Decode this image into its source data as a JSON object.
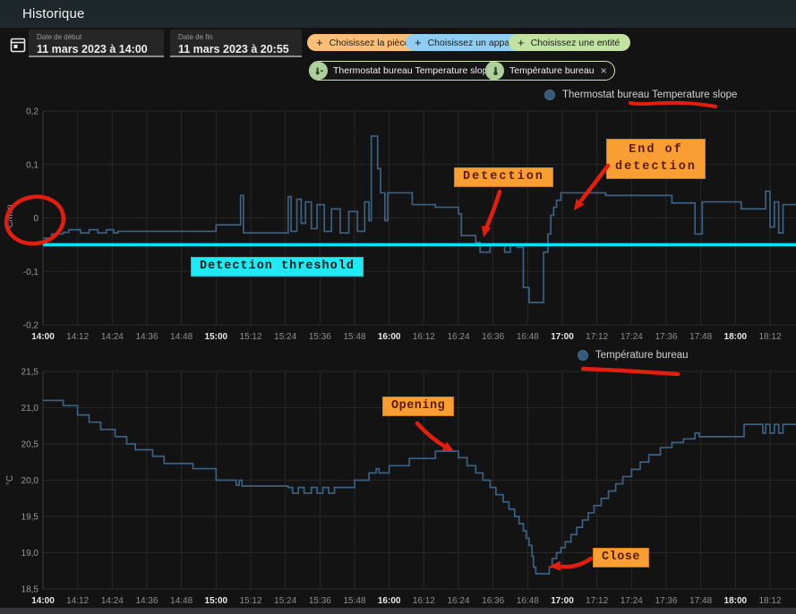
{
  "header": {
    "title": "Historique"
  },
  "toolbar": {
    "start_date": {
      "label": "Date de début",
      "value": "11 mars 2023 à 14:00"
    },
    "end_date": {
      "label": "Date de fin",
      "value": "11 mars 2023 à 20:55"
    },
    "filter_buttons": [
      {
        "label": "Choisissez la pièce",
        "color": "#fbbf77"
      },
      {
        "label": "Choisissez un appareil",
        "color": "#8fcdf2"
      },
      {
        "label": "Choisissez une entité",
        "color": "#c2e2a2"
      }
    ],
    "entity_chips": [
      {
        "label": "Thermostat bureau Temperature slope",
        "icon": "thermometer-chevron-icon"
      },
      {
        "label": "Température bureau",
        "icon": "thermometer-icon"
      }
    ]
  },
  "icons": {
    "plus": "+",
    "close": "×"
  },
  "annotations": {
    "detection": "Detection",
    "end_of_detection_l1": "End of",
    "end_of_detection_l2": "detection",
    "threshold": "Detection threshold",
    "opening": "Opening",
    "close": "Close"
  },
  "colors": {
    "series_blue": "#3b6183",
    "threshold_cyan": "#00e6f0",
    "annotation_orange": "#f89e33",
    "annotation_cyan": "#21e9f3",
    "marker_red": "#e41e0f"
  },
  "chart_data": [
    {
      "type": "line",
      "title": "Thermostat bureau Temperature slope",
      "ylabel": "°C/min",
      "ylim": [
        -0.2,
        0.2
      ],
      "x_range_minutes": [
        0,
        261
      ],
      "grid": true,
      "legend_position": "top-right",
      "y_ticks": [
        {
          "v": 0.2,
          "label": "0,2"
        },
        {
          "v": 0.1,
          "label": "0,1"
        },
        {
          "v": 0,
          "label": "0"
        },
        {
          "v": -0.1,
          "label": "-0,1"
        },
        {
          "v": -0.2,
          "label": "-0,2"
        }
      ],
      "x_ticks": [
        {
          "t": 0,
          "label": "14:00",
          "bold": true
        },
        {
          "t": 12,
          "label": "14:12"
        },
        {
          "t": 24,
          "label": "14:24"
        },
        {
          "t": 36,
          "label": "14:36"
        },
        {
          "t": 48,
          "label": "14:48"
        },
        {
          "t": 60,
          "label": "15:00",
          "bold": true
        },
        {
          "t": 72,
          "label": "15:12"
        },
        {
          "t": 84,
          "label": "15:24"
        },
        {
          "t": 96,
          "label": "15:36"
        },
        {
          "t": 108,
          "label": "15:48"
        },
        {
          "t": 120,
          "label": "16:00",
          "bold": true
        },
        {
          "t": 132,
          "label": "16:12"
        },
        {
          "t": 144,
          "label": "16:24"
        },
        {
          "t": 156,
          "label": "16:36"
        },
        {
          "t": 168,
          "label": "16:48"
        },
        {
          "t": 180,
          "label": "17:00",
          "bold": true
        },
        {
          "t": 192,
          "label": "17:12"
        },
        {
          "t": 204,
          "label": "17:24"
        },
        {
          "t": 216,
          "label": "17:36"
        },
        {
          "t": 228,
          "label": "17:48"
        },
        {
          "t": 240,
          "label": "18:00",
          "bold": true
        },
        {
          "t": 252,
          "label": "18:12"
        }
      ],
      "threshold": {
        "value": -0.05,
        "color": "#00e6f0",
        "label": "Detection threshold"
      },
      "series": [
        {
          "name": "Thermostat bureau Temperature slope",
          "color": "#3b6183",
          "step": true,
          "points": [
            [
              0,
              -0.038
            ],
            [
              3,
              -0.03
            ],
            [
              7,
              -0.027
            ],
            [
              9,
              -0.022
            ],
            [
              13,
              -0.028
            ],
            [
              16,
              -0.022
            ],
            [
              19,
              -0.028
            ],
            [
              22,
              -0.022
            ],
            [
              24.5,
              -0.028
            ],
            [
              26,
              -0.025
            ],
            [
              60,
              -0.013
            ],
            [
              68.5,
              0.042
            ],
            [
              69.5,
              -0.028
            ],
            [
              85,
              0.04
            ],
            [
              86,
              -0.025
            ],
            [
              88,
              0.035
            ],
            [
              89.5,
              -0.01
            ],
            [
              91,
              0.03
            ],
            [
              93,
              -0.02
            ],
            [
              95,
              0.025
            ],
            [
              97.5,
              -0.025
            ],
            [
              100,
              0.017
            ],
            [
              103,
              -0.028
            ],
            [
              106,
              0.012
            ],
            [
              109,
              -0.025
            ],
            [
              111.5,
              0.03
            ],
            [
              113,
              -0.005
            ],
            [
              113.8,
              0.153
            ],
            [
              116,
              0.092
            ],
            [
              117,
              0.047
            ],
            [
              118.5,
              -0.005
            ],
            [
              119.5,
              0.047
            ],
            [
              127,
              0.047
            ],
            [
              128,
              0.025
            ],
            [
              136,
              0.02
            ],
            [
              144,
              0.008
            ],
            [
              145,
              -0.033
            ],
            [
              150,
              -0.046
            ],
            [
              151.5,
              -0.064
            ],
            [
              155,
              -0.049
            ],
            [
              160,
              -0.064
            ],
            [
              162,
              -0.049
            ],
            [
              164.5,
              -0.055
            ],
            [
              166.5,
              -0.13
            ],
            [
              168.5,
              -0.158
            ],
            [
              173.5,
              -0.064
            ],
            [
              175,
              -0.03
            ],
            [
              176,
              0.005
            ],
            [
              177,
              0.02
            ],
            [
              178,
              0.033
            ],
            [
              179.5,
              0.047
            ],
            [
              195,
              0.042
            ],
            [
              218,
              0.028
            ],
            [
              226,
              -0.03
            ],
            [
              228.5,
              0.03
            ],
            [
              242,
              0.017
            ],
            [
              250.5,
              0.05
            ],
            [
              252,
              -0.017
            ],
            [
              253.5,
              0.03
            ],
            [
              255,
              -0.028
            ],
            [
              256.5,
              0.025
            ]
          ]
        }
      ]
    },
    {
      "type": "line",
      "title": "Température bureau",
      "ylabel": "°C",
      "ylim": [
        18.5,
        21.5
      ],
      "x_range_minutes": [
        0,
        261
      ],
      "grid": true,
      "legend_position": "top-right",
      "y_ticks": [
        {
          "v": 21.5,
          "label": "21,5"
        },
        {
          "v": 21.0,
          "label": "21,0"
        },
        {
          "v": 20.5,
          "label": "20,5"
        },
        {
          "v": 20.0,
          "label": "20,0"
        },
        {
          "v": 19.5,
          "label": "19,5"
        },
        {
          "v": 19.0,
          "label": "19,0"
        },
        {
          "v": 18.5,
          "label": "18,5"
        }
      ],
      "x_ticks": [
        {
          "t": 0,
          "label": "14:00",
          "bold": true
        },
        {
          "t": 12,
          "label": "14:12"
        },
        {
          "t": 24,
          "label": "14:24"
        },
        {
          "t": 36,
          "label": "14:36"
        },
        {
          "t": 48,
          "label": "14:48"
        },
        {
          "t": 60,
          "label": "15:00",
          "bold": true
        },
        {
          "t": 72,
          "label": "15:12"
        },
        {
          "t": 84,
          "label": "15:24"
        },
        {
          "t": 96,
          "label": "15:36"
        },
        {
          "t": 108,
          "label": "15:48"
        },
        {
          "t": 120,
          "label": "16:00",
          "bold": true
        },
        {
          "t": 132,
          "label": "16:12"
        },
        {
          "t": 144,
          "label": "16:24"
        },
        {
          "t": 156,
          "label": "16:36"
        },
        {
          "t": 168,
          "label": "16:48"
        },
        {
          "t": 180,
          "label": "17:00",
          "bold": true
        },
        {
          "t": 192,
          "label": "17:12"
        },
        {
          "t": 204,
          "label": "17:24"
        },
        {
          "t": 216,
          "label": "17:36"
        },
        {
          "t": 228,
          "label": "17:48"
        },
        {
          "t": 240,
          "label": "18:00",
          "bold": true
        },
        {
          "t": 252,
          "label": "18:12"
        }
      ],
      "series": [
        {
          "name": "Température bureau",
          "color": "#3b6183",
          "step": true,
          "points": [
            [
              0,
              21.1
            ],
            [
              7,
              21.03
            ],
            [
              12,
              20.9
            ],
            [
              16,
              20.8
            ],
            [
              20,
              20.7
            ],
            [
              25,
              20.6
            ],
            [
              29,
              20.5
            ],
            [
              32,
              20.42
            ],
            [
              38,
              20.33
            ],
            [
              42,
              20.23
            ],
            [
              52,
              20.16
            ],
            [
              60,
              20.0
            ],
            [
              67,
              19.93
            ],
            [
              68,
              20.0
            ],
            [
              69,
              19.92
            ],
            [
              85,
              19.9
            ],
            [
              86.5,
              19.82
            ],
            [
              88.5,
              19.9
            ],
            [
              90.5,
              19.82
            ],
            [
              93,
              19.9
            ],
            [
              95,
              19.82
            ],
            [
              97,
              19.9
            ],
            [
              99,
              19.82
            ],
            [
              101,
              19.9
            ],
            [
              108,
              20.0
            ],
            [
              113,
              20.1
            ],
            [
              115.5,
              20.16
            ],
            [
              116.5,
              20.1
            ],
            [
              120,
              20.2
            ],
            [
              127,
              20.3
            ],
            [
              136,
              20.4
            ],
            [
              144,
              20.31
            ],
            [
              147,
              20.2
            ],
            [
              150,
              20.1
            ],
            [
              152.5,
              20.0
            ],
            [
              155,
              19.9
            ],
            [
              157,
              19.8
            ],
            [
              159.5,
              19.7
            ],
            [
              161.5,
              19.6
            ],
            [
              163.5,
              19.5
            ],
            [
              165,
              19.4
            ],
            [
              166.5,
              19.3
            ],
            [
              167.5,
              19.2
            ],
            [
              168.5,
              19.1
            ],
            [
              169.5,
              18.95
            ],
            [
              170,
              18.8
            ],
            [
              170.8,
              18.71
            ],
            [
              175.5,
              18.8
            ],
            [
              176.5,
              18.92
            ],
            [
              178,
              19.0
            ],
            [
              179.5,
              19.07
            ],
            [
              181,
              19.15
            ],
            [
              183,
              19.25
            ],
            [
              185,
              19.35
            ],
            [
              187,
              19.45
            ],
            [
              189,
              19.55
            ],
            [
              191,
              19.65
            ],
            [
              193.5,
              19.75
            ],
            [
              196,
              19.85
            ],
            [
              198.5,
              19.95
            ],
            [
              201,
              20.05
            ],
            [
              204,
              20.15
            ],
            [
              207,
              20.25
            ],
            [
              210,
              20.35
            ],
            [
              214,
              20.45
            ],
            [
              218,
              20.52
            ],
            [
              222,
              20.57
            ],
            [
              226,
              20.65
            ],
            [
              227.5,
              20.6
            ],
            [
              242,
              20.6
            ],
            [
              243,
              20.77
            ],
            [
              249.5,
              20.65
            ],
            [
              250.5,
              20.77
            ],
            [
              252,
              20.65
            ],
            [
              253.5,
              20.77
            ],
            [
              255,
              20.65
            ],
            [
              256.5,
              20.77
            ]
          ]
        }
      ]
    }
  ]
}
